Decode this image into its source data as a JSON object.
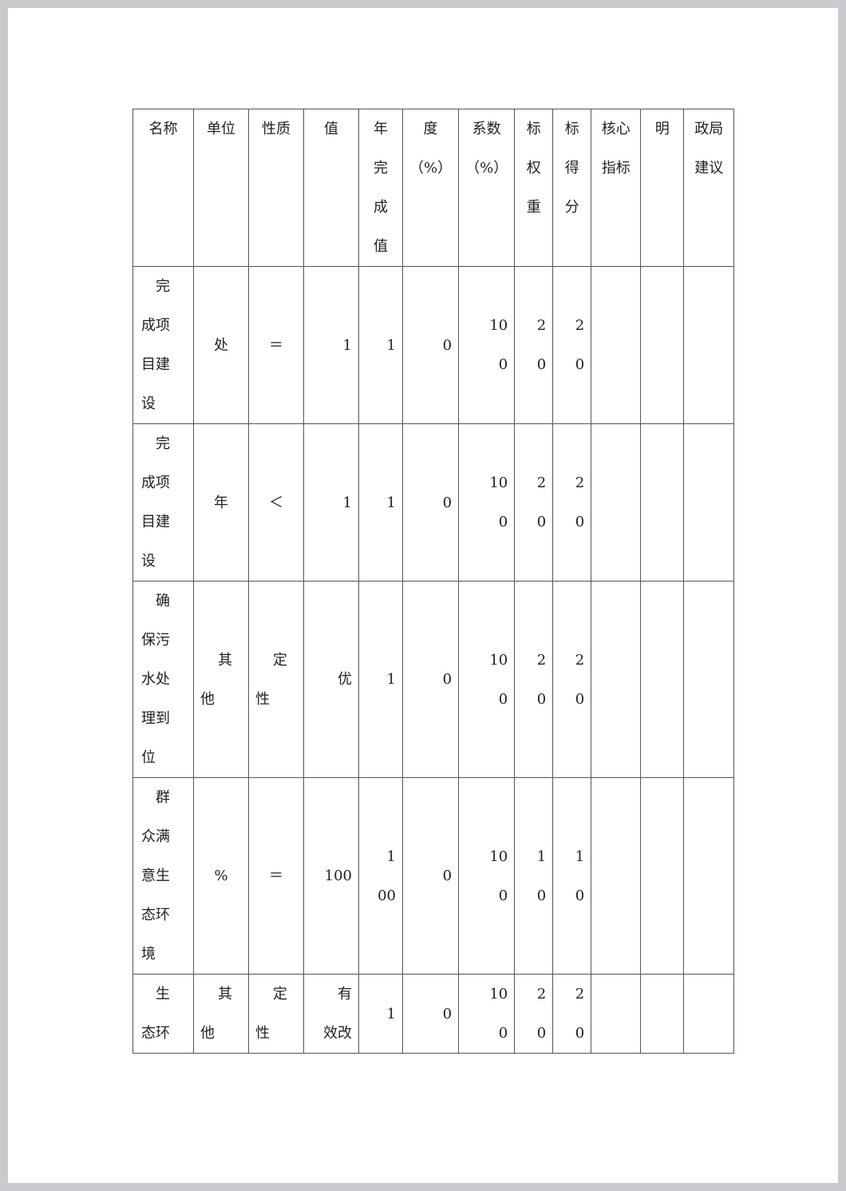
{
  "table": {
    "header": [
      [
        "名称"
      ],
      [
        "单位"
      ],
      [
        "性质"
      ],
      [
        "值"
      ],
      [
        "年",
        "完",
        "成",
        "值"
      ],
      [
        "度",
        "（%）"
      ],
      [
        "系数",
        "（%）"
      ],
      [
        "标",
        "权",
        "重"
      ],
      [
        "标",
        "得",
        "分"
      ],
      [
        "核心",
        "指标"
      ],
      [
        "明"
      ],
      [
        "政局",
        "建议"
      ]
    ],
    "rows": [
      [
        [
          "完",
          "成项",
          "目建",
          "设"
        ],
        [
          "处"
        ],
        [
          "＝"
        ],
        [
          "1"
        ],
        [
          "1"
        ],
        [
          "0"
        ],
        [
          "10",
          "0"
        ],
        [
          "2",
          "0"
        ],
        [
          "2",
          "0"
        ],
        [],
        [],
        []
      ],
      [
        [
          "完",
          "成项",
          "目建",
          "设"
        ],
        [
          "年"
        ],
        [
          "＜"
        ],
        [
          "1"
        ],
        [
          "1"
        ],
        [
          "0"
        ],
        [
          "10",
          "0"
        ],
        [
          "2",
          "0"
        ],
        [
          "2",
          "0"
        ],
        [],
        [],
        []
      ],
      [
        [
          "确",
          "保污",
          "水处",
          "理到",
          "位"
        ],
        [
          "其",
          "他"
        ],
        [
          "定",
          "性"
        ],
        [
          "优"
        ],
        [
          "1"
        ],
        [
          "0"
        ],
        [
          "10",
          "0"
        ],
        [
          "2",
          "0"
        ],
        [
          "2",
          "0"
        ],
        [],
        [],
        []
      ],
      [
        [
          "群",
          "众满",
          "意生",
          "态环",
          "境"
        ],
        [
          "%"
        ],
        [
          "＝"
        ],
        [
          "100"
        ],
        [
          "1",
          "00"
        ],
        [
          "0"
        ],
        [
          "10",
          "0"
        ],
        [
          "1",
          "0"
        ],
        [
          "1",
          "0"
        ],
        [],
        [],
        []
      ],
      [
        [
          "生",
          "态环"
        ],
        [
          "其",
          "他"
        ],
        [
          "定",
          "性"
        ],
        [
          "有",
          "效改"
        ],
        [
          "1"
        ],
        [
          "0"
        ],
        [
          "10",
          "0"
        ],
        [
          "2",
          "0"
        ],
        [
          "2",
          "0"
        ],
        [],
        [],
        []
      ]
    ]
  }
}
